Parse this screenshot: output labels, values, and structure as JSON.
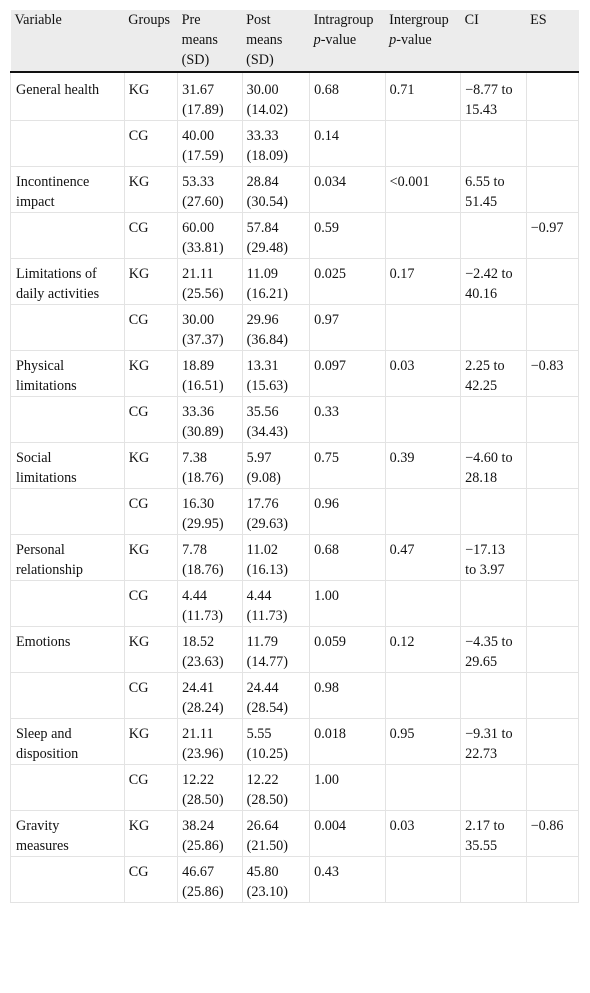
{
  "headers": {
    "variable": "Variable",
    "groups": "Groups",
    "pre_1": "Pre",
    "pre_2": "means",
    "pre_3": "(SD)",
    "post_1": "Post",
    "post_2": "means",
    "post_3": "(SD)",
    "intra_1": "Intragroup",
    "intra_2": "p",
    "intra_3": "-value",
    "inter_1": "Intergroup",
    "inter_2": "p",
    "inter_3": "-value",
    "ci": "CI",
    "es": "ES"
  },
  "rows": [
    {
      "variable_1": "General health",
      "variable_2": "",
      "kg": {
        "group": "KG",
        "pre_mean": "31.67",
        "pre_sd": "(17.89)",
        "post_mean": "30.00",
        "post_sd": "(14.02)",
        "intra_p": "0.68",
        "inter_p": "0.71",
        "ci_1": "−8.77 to",
        "ci_2": "15.43",
        "es": ""
      },
      "cg": {
        "group": "CG",
        "pre_mean": "40.00",
        "pre_sd": "(17.59)",
        "post_mean": "33.33",
        "post_sd": "(18.09)",
        "intra_p": "0.14",
        "inter_p": "",
        "ci_1": "",
        "ci_2": "",
        "es": ""
      }
    },
    {
      "variable_1": "Incontinence",
      "variable_2": "impact",
      "kg": {
        "group": "KG",
        "pre_mean": "53.33",
        "pre_sd": "(27.60)",
        "post_mean": "28.84",
        "post_sd": "(30.54)",
        "intra_p": "0.034",
        "inter_p": "<0.001",
        "ci_1": "6.55 to",
        "ci_2": "51.45",
        "es": ""
      },
      "cg": {
        "group": "CG",
        "pre_mean": "60.00",
        "pre_sd": "(33.81)",
        "post_mean": "57.84",
        "post_sd": "(29.48)",
        "intra_p": "0.59",
        "inter_p": "",
        "ci_1": "",
        "ci_2": "",
        "es": "−0.97"
      }
    },
    {
      "variable_1": "Limitations of",
      "variable_2": "daily activities",
      "kg": {
        "group": "KG",
        "pre_mean": "21.11",
        "pre_sd": "(25.56)",
        "post_mean": "11.09",
        "post_sd": "(16.21)",
        "intra_p": "0.025",
        "inter_p": "0.17",
        "ci_1": "−2.42 to",
        "ci_2": "40.16",
        "es": ""
      },
      "cg": {
        "group": "CG",
        "pre_mean": "30.00",
        "pre_sd": "(37.37)",
        "post_mean": "29.96",
        "post_sd": "(36.84)",
        "intra_p": "0.97",
        "inter_p": "",
        "ci_1": "",
        "ci_2": "",
        "es": ""
      }
    },
    {
      "variable_1": "Physical",
      "variable_2": "limitations",
      "kg": {
        "group": "KG",
        "pre_mean": "18.89",
        "pre_sd": "(16.51)",
        "post_mean": "13.31",
        "post_sd": "(15.63)",
        "intra_p": "0.097",
        "inter_p": "0.03",
        "ci_1": "2.25 to",
        "ci_2": "42.25",
        "es": "−0.83"
      },
      "cg": {
        "group": "CG",
        "pre_mean": "33.36",
        "pre_sd": "(30.89)",
        "post_mean": "35.56",
        "post_sd": "(34.43)",
        "intra_p": "0.33",
        "inter_p": "",
        "ci_1": "",
        "ci_2": "",
        "es": ""
      }
    },
    {
      "variable_1": "Social",
      "variable_2": "limitations",
      "kg": {
        "group": "KG",
        "pre_mean": "7.38",
        "pre_sd": "(18.76)",
        "post_mean": "5.97",
        "post_sd": "(9.08)",
        "intra_p": "0.75",
        "inter_p": "0.39",
        "ci_1": "−4.60 to",
        "ci_2": "28.18",
        "es": ""
      },
      "cg": {
        "group": "CG",
        "pre_mean": "16.30",
        "pre_sd": "(29.95)",
        "post_mean": "17.76",
        "post_sd": "(29.63)",
        "intra_p": "0.96",
        "inter_p": "",
        "ci_1": "",
        "ci_2": "",
        "es": ""
      }
    },
    {
      "variable_1": "Personal",
      "variable_2": "relationship",
      "kg": {
        "group": "KG",
        "pre_mean": "7.78",
        "pre_sd": "(18.76)",
        "post_mean": "11.02",
        "post_sd": "(16.13)",
        "intra_p": "0.68",
        "inter_p": "0.47",
        "ci_1": "−17.13",
        "ci_2": "to 3.97",
        "es": ""
      },
      "cg": {
        "group": "CG",
        "pre_mean": "4.44",
        "pre_sd": "(11.73)",
        "post_mean": "4.44",
        "post_sd": "(11.73)",
        "intra_p": "1.00",
        "inter_p": "",
        "ci_1": "",
        "ci_2": "",
        "es": ""
      }
    },
    {
      "variable_1": "Emotions",
      "variable_2": "",
      "kg": {
        "group": "KG",
        "pre_mean": "18.52",
        "pre_sd": "(23.63)",
        "post_mean": "11.79",
        "post_sd": "(14.77)",
        "intra_p": "0.059",
        "inter_p": "0.12",
        "ci_1": "−4.35 to",
        "ci_2": "29.65",
        "es": ""
      },
      "cg": {
        "group": "CG",
        "pre_mean": "24.41",
        "pre_sd": "(28.24)",
        "post_mean": "24.44",
        "post_sd": "(28.54)",
        "intra_p": "0.98",
        "inter_p": "",
        "ci_1": "",
        "ci_2": "",
        "es": ""
      }
    },
    {
      "variable_1": "Sleep and",
      "variable_2": "disposition",
      "kg": {
        "group": "KG",
        "pre_mean": "21.11",
        "pre_sd": "(23.96)",
        "post_mean": "5.55",
        "post_sd": "(10.25)",
        "intra_p": "0.018",
        "inter_p": "0.95",
        "ci_1": "−9.31 to",
        "ci_2": "22.73",
        "es": ""
      },
      "cg": {
        "group": "CG",
        "pre_mean": "12.22",
        "pre_sd": "(28.50)",
        "post_mean": "12.22",
        "post_sd": "(28.50)",
        "intra_p": "1.00",
        "inter_p": "",
        "ci_1": "",
        "ci_2": "",
        "es": ""
      }
    },
    {
      "variable_1": "Gravity",
      "variable_2": "measures",
      "kg": {
        "group": "KG",
        "pre_mean": "38.24",
        "pre_sd": "(25.86)",
        "post_mean": "26.64",
        "post_sd": "(21.50)",
        "intra_p": "0.004",
        "inter_p": "0.03",
        "ci_1": "2.17 to",
        "ci_2": "35.55",
        "es": "−0.86"
      },
      "cg": {
        "group": "CG",
        "pre_mean": "46.67",
        "pre_sd": "(25.86)",
        "post_mean": "45.80",
        "post_sd": "(23.10)",
        "intra_p": "0.43",
        "inter_p": "",
        "ci_1": "",
        "ci_2": "",
        "es": ""
      }
    }
  ]
}
